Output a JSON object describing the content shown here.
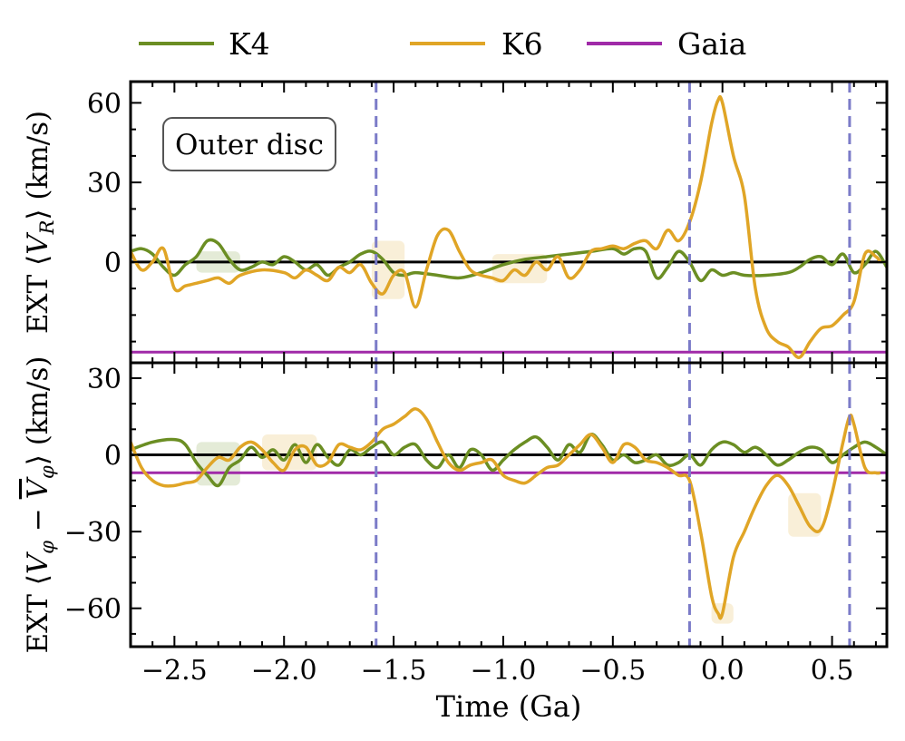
{
  "legend": {
    "placement": "top-outside",
    "items": [
      {
        "label": "K4",
        "color": "#6b8e23"
      },
      {
        "label": "K6",
        "color": "#e0a526"
      },
      {
        "label": "Gaia",
        "color": "#a02aa8"
      }
    ]
  },
  "chart_data": [
    {
      "type": "line",
      "panel": "top",
      "annotation": "Outer disc",
      "ylabel_parts": {
        "prefix": "EXT ⟨",
        "var": "V",
        "sub": "R",
        "suffix": "⟩ (km/s)"
      },
      "xlim": [
        -2.7,
        0.75
      ],
      "ylim": [
        -38,
        68
      ],
      "yticks": [
        0,
        30,
        60
      ],
      "ytick_labels": [
        "0",
        "30",
        "60"
      ],
      "zero_line": 0,
      "vlines": [
        -1.58,
        -0.15,
        0.58
      ],
      "series": [
        {
          "name": "K4",
          "color": "#6b8e23",
          "x": [
            -2.7,
            -2.65,
            -2.6,
            -2.55,
            -2.5,
            -2.45,
            -2.4,
            -2.35,
            -2.3,
            -2.25,
            -2.2,
            -2.15,
            -2.1,
            -2.05,
            -2.0,
            -1.95,
            -1.9,
            -1.85,
            -1.8,
            -1.75,
            -1.7,
            -1.65,
            -1.6,
            -1.55,
            -1.5,
            -1.45,
            -1.4,
            -1.3,
            -1.2,
            -1.1,
            -1.0,
            -0.9,
            -0.8,
            -0.7,
            -0.6,
            -0.5,
            -0.45,
            -0.4,
            -0.35,
            -0.3,
            -0.25,
            -0.2,
            -0.15,
            -0.1,
            -0.05,
            0.0,
            0.05,
            0.1,
            0.2,
            0.3,
            0.35,
            0.4,
            0.45,
            0.5,
            0.55,
            0.6,
            0.65,
            0.7,
            0.75
          ],
          "y": [
            4,
            5,
            3,
            -2,
            -5,
            -1,
            2,
            8,
            7,
            1,
            -3,
            -2,
            0,
            -1,
            2,
            0,
            -3,
            -1,
            -5,
            -2,
            0,
            3,
            4,
            1,
            -4,
            -5,
            -4,
            -5,
            -6,
            -4,
            -1,
            1,
            2,
            3,
            4,
            5,
            3,
            5,
            4,
            -6,
            -2,
            4,
            0,
            -7,
            -3,
            -5,
            -4,
            -5,
            -5,
            -4,
            -2,
            1,
            2,
            -1,
            3,
            -4,
            -1,
            4,
            -2
          ]
        },
        {
          "name": "K6",
          "color": "#e0a526",
          "x": [
            -2.7,
            -2.65,
            -2.6,
            -2.55,
            -2.5,
            -2.45,
            -2.4,
            -2.35,
            -2.3,
            -2.25,
            -2.2,
            -2.1,
            -2.0,
            -1.95,
            -1.9,
            -1.85,
            -1.8,
            -1.75,
            -1.7,
            -1.65,
            -1.6,
            -1.55,
            -1.5,
            -1.45,
            -1.4,
            -1.35,
            -1.3,
            -1.25,
            -1.2,
            -1.15,
            -1.1,
            -1.05,
            -1.0,
            -0.95,
            -0.9,
            -0.85,
            -0.8,
            -0.75,
            -0.7,
            -0.65,
            -0.6,
            -0.55,
            -0.5,
            -0.45,
            -0.4,
            -0.35,
            -0.3,
            -0.25,
            -0.2,
            -0.15,
            -0.1,
            -0.05,
            -0.02,
            0.0,
            0.05,
            0.1,
            0.15,
            0.2,
            0.25,
            0.3,
            0.35,
            0.4,
            0.45,
            0.5,
            0.55,
            0.6,
            0.65,
            0.7,
            0.72
          ],
          "y": [
            4,
            -3,
            0,
            5,
            -10,
            -9,
            -8,
            -7,
            -6,
            -8,
            -5,
            -3,
            -4,
            -6,
            -3,
            -5,
            -7,
            -2,
            -4,
            -1,
            -8,
            -12,
            -5,
            -4,
            -17,
            -3,
            10,
            12,
            4,
            -3,
            -5,
            -6,
            -7,
            -3,
            -5,
            0,
            -3,
            2,
            -6,
            -3,
            4,
            5,
            6,
            5,
            7,
            8,
            5,
            12,
            8,
            15,
            30,
            52,
            61,
            60,
            40,
            25,
            -10,
            -25,
            -30,
            -32,
            -36,
            -30,
            -25,
            -24,
            -20,
            -15,
            3,
            2,
            0
          ]
        }
      ],
      "bands": [
        {
          "name": "K4",
          "x0": -2.4,
          "x1": -2.2,
          "lo": -4,
          "hi": 4
        },
        {
          "name": "K6",
          "x0": -1.6,
          "x1": -1.45,
          "lo": -14,
          "hi": 8
        },
        {
          "name": "K6",
          "x0": -1.05,
          "x1": -0.8,
          "lo": -8,
          "hi": 3
        }
      ],
      "gaia": -34
    },
    {
      "type": "line",
      "panel": "bottom",
      "xlabel": "Time (Ga)",
      "ylabel_parts": {
        "prefix": "EXT ⟨",
        "var": "V",
        "sub": "φ",
        "mid": " − ",
        "var2": "V",
        "sub2": "φ",
        "suffix": "⟩ (km/s)"
      },
      "xlim": [
        -2.7,
        0.75
      ],
      "ylim": [
        -75,
        36
      ],
      "xticks": [
        -2.5,
        -2.0,
        -1.5,
        -1.0,
        -0.5,
        0.0,
        0.5
      ],
      "xtick_labels": [
        "−2.5",
        "−2.0",
        "−1.5",
        "−1.0",
        "−0.5",
        "0.0",
        "0.5"
      ],
      "yticks": [
        -60,
        -30,
        0,
        30
      ],
      "ytick_labels": [
        "−60",
        "−30",
        "0",
        "30"
      ],
      "zero_line": 0,
      "vlines": [
        -1.58,
        -0.15,
        0.58
      ],
      "series": [
        {
          "name": "K4",
          "color": "#6b8e23",
          "x": [
            -2.7,
            -2.6,
            -2.5,
            -2.45,
            -2.4,
            -2.35,
            -2.3,
            -2.25,
            -2.2,
            -2.15,
            -2.1,
            -2.05,
            -2.0,
            -1.95,
            -1.9,
            -1.85,
            -1.8,
            -1.75,
            -1.7,
            -1.65,
            -1.6,
            -1.55,
            -1.5,
            -1.45,
            -1.4,
            -1.35,
            -1.3,
            -1.25,
            -1.2,
            -1.15,
            -1.1,
            -1.05,
            -1.0,
            -0.95,
            -0.9,
            -0.85,
            -0.8,
            -0.75,
            -0.7,
            -0.65,
            -0.6,
            -0.55,
            -0.5,
            -0.45,
            -0.4,
            -0.35,
            -0.3,
            -0.25,
            -0.2,
            -0.15,
            -0.1,
            -0.05,
            0.0,
            0.05,
            0.1,
            0.15,
            0.2,
            0.25,
            0.3,
            0.35,
            0.4,
            0.45,
            0.5,
            0.55,
            0.6,
            0.65,
            0.7,
            0.75
          ],
          "y": [
            2,
            5,
            6,
            4,
            -3,
            -8,
            -12,
            -5,
            -2,
            3,
            -1,
            2,
            -2,
            4,
            -3,
            4,
            -1,
            -4,
            2,
            0,
            3,
            5,
            0,
            3,
            4,
            -2,
            -5,
            0,
            -5,
            2,
            0,
            -6,
            -2,
            2,
            5,
            7,
            3,
            -2,
            4,
            1,
            8,
            4,
            -2,
            0,
            -3,
            -2,
            0,
            -4,
            -3,
            0,
            -4,
            2,
            5,
            4,
            1,
            3,
            0,
            -4,
            -2,
            1,
            3,
            2,
            -3,
            0,
            3,
            5,
            3,
            0
          ]
        },
        {
          "name": "K6",
          "color": "#e0a526",
          "x": [
            -2.7,
            -2.65,
            -2.6,
            -2.55,
            -2.5,
            -2.45,
            -2.4,
            -2.35,
            -2.3,
            -2.25,
            -2.2,
            -2.15,
            -2.1,
            -2.05,
            -2.0,
            -1.95,
            -1.9,
            -1.85,
            -1.8,
            -1.75,
            -1.7,
            -1.65,
            -1.6,
            -1.55,
            -1.5,
            -1.45,
            -1.4,
            -1.35,
            -1.3,
            -1.25,
            -1.2,
            -1.15,
            -1.1,
            -1.05,
            -1.0,
            -0.95,
            -0.9,
            -0.85,
            -0.8,
            -0.75,
            -0.7,
            -0.65,
            -0.6,
            -0.55,
            -0.5,
            -0.45,
            -0.4,
            -0.35,
            -0.3,
            -0.25,
            -0.2,
            -0.15,
            -0.1,
            -0.05,
            -0.02,
            0.0,
            0.05,
            0.1,
            0.15,
            0.2,
            0.25,
            0.3,
            0.35,
            0.4,
            0.45,
            0.5,
            0.55,
            0.58,
            0.6,
            0.65,
            0.7,
            0.72
          ],
          "y": [
            5,
            -5,
            -10,
            -12,
            -12,
            -11,
            -10,
            -5,
            -1,
            -2,
            3,
            5,
            2,
            -3,
            -6,
            2,
            3,
            -4,
            -3,
            4,
            3,
            2,
            5,
            10,
            12,
            15,
            18,
            14,
            5,
            -3,
            -6,
            -4,
            -3,
            -2,
            -8,
            -10,
            -11,
            -8,
            -5,
            -4,
            0,
            4,
            8,
            3,
            -3,
            4,
            3,
            -2,
            -3,
            -5,
            -8,
            -10,
            -30,
            -55,
            -62,
            -62,
            -40,
            -30,
            -20,
            -12,
            -8,
            -12,
            -20,
            -28,
            -29,
            -15,
            5,
            15,
            12,
            -5,
            -7,
            -7
          ]
        }
      ],
      "bands": [
        {
          "name": "K4",
          "x0": -2.4,
          "x1": -2.2,
          "lo": -12,
          "hi": 5
        },
        {
          "name": "K6",
          "x0": -2.1,
          "x1": -1.85,
          "lo": -6,
          "hi": 8
        },
        {
          "name": "K6",
          "x0": 0.3,
          "x1": 0.45,
          "lo": -32,
          "hi": -15
        },
        {
          "name": "K6",
          "x0": -0.05,
          "x1": 0.05,
          "lo": -66,
          "hi": -58
        }
      ],
      "gaia": -7
    }
  ]
}
